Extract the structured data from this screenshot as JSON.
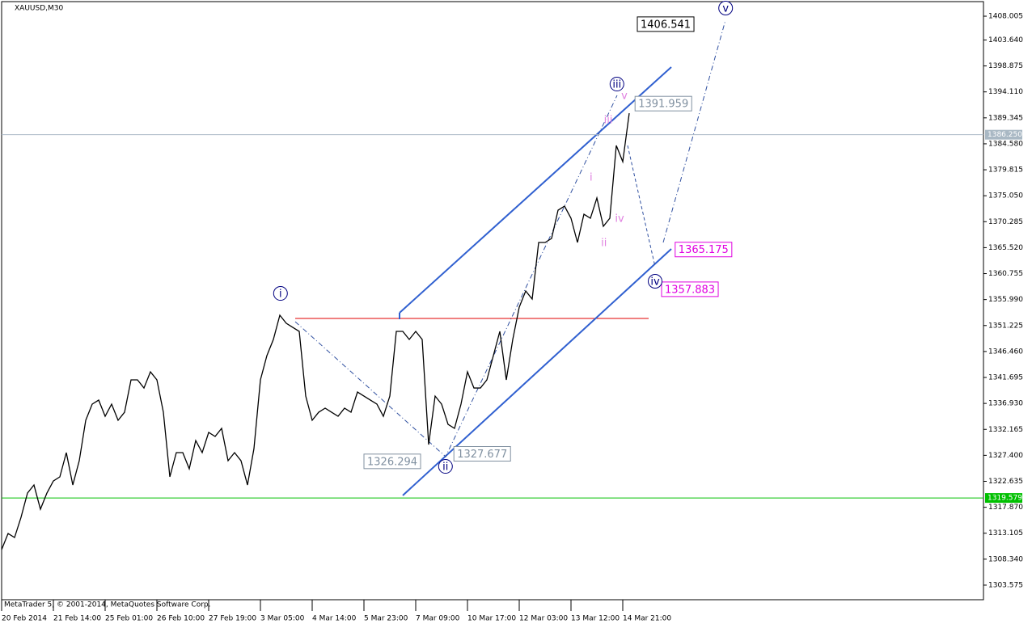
{
  "chart_data": {
    "type": "line",
    "title": "XAUUSD,M30",
    "footer": "MetaTrader 5, © 2001-2014, MetaQuotes Software Corp.",
    "color": "#000000",
    "xlim": [
      0,
      151.75
    ],
    "ylim": [
      1300.9,
      1410.68
    ],
    "xticks": [
      {
        "value": 0,
        "label": "20 Feb 2014"
      },
      {
        "value": 8,
        "label": "21 Feb 14:00"
      },
      {
        "value": 16,
        "label": "25 Feb 01:00"
      },
      {
        "value": 24,
        "label": "26 Feb 10:00"
      },
      {
        "value": 32,
        "label": "27 Feb 19:00"
      },
      {
        "value": 40,
        "label": "3 Mar 05:00"
      },
      {
        "value": 48,
        "label": "4 Mar 14:00"
      },
      {
        "value": 56,
        "label": "5 Mar 23:00"
      },
      {
        "value": 64,
        "label": "7 Mar 09:00"
      },
      {
        "value": 72,
        "label": "10 Mar 17:00"
      },
      {
        "value": 80,
        "label": "12 Mar 03:00"
      },
      {
        "value": 88,
        "label": "13 Mar 12:00"
      },
      {
        "value": 96,
        "label": "14 Mar 21:00"
      }
    ],
    "yticks": [
      1303.575,
      {
        "value": 1308.34,
        "label": "1308.340"
      },
      1313.105,
      {
        "value": 1317.87,
        "label": "1317.870"
      },
      1322.635,
      {
        "value": 1327.4,
        "label": "1327.400"
      },
      1332.165,
      {
        "value": 1336.93,
        "label": "1336.930"
      },
      1341.695,
      {
        "value": 1346.46,
        "label": "1346.460"
      },
      1351.225,
      {
        "value": 1355.99,
        "label": "1355.990"
      },
      1360.755,
      {
        "value": 1365.52,
        "label": "1365.520"
      },
      1370.285,
      {
        "value": 1375.05,
        "label": "1375.050"
      },
      1379.815,
      {
        "value": 1384.58,
        "label": "1384.580"
      },
      1389.345,
      {
        "value": 1394.11,
        "label": "1394.110"
      },
      1398.875,
      {
        "value": 1403.64,
        "label": "1403.640"
      },
      1408.005
    ],
    "values": [
      1310.09,
      1313.06,
      1312.32,
      1316.03,
      1320.48,
      1321.96,
      1317.51,
      1320.48,
      1322.7,
      1323.45,
      1327.9,
      1321.96,
      1326.41,
      1333.83,
      1336.8,
      1337.54,
      1334.57,
      1336.8,
      1333.83,
      1335.31,
      1341.25,
      1341.25,
      1339.76,
      1342.73,
      1341.25,
      1335.31,
      1323.45,
      1327.9,
      1327.9,
      1324.93,
      1330.12,
      1327.9,
      1331.61,
      1330.86,
      1332.35,
      1326.41,
      1327.9,
      1326.41,
      1321.96,
      1328.64,
      1341.25,
      1345.7,
      1348.67,
      1353.12,
      1351.63,
      1350.89,
      1350.15,
      1338.28,
      1333.83,
      1335.31,
      1336.06,
      1335.31,
      1334.57,
      1336.06,
      1335.31,
      1339.02,
      1338.28,
      1337.54,
      1336.8,
      1334.57,
      1338.28,
      1350.15,
      1350.15,
      1348.67,
      1350.15,
      1348.67,
      1329.38,
      1338.28,
      1336.8,
      1333.09,
      1332.35,
      1336.8,
      1342.73,
      1339.76,
      1339.76,
      1341.25,
      1345.7,
      1350.15,
      1341.25,
      1348.67,
      1354.6,
      1357.57,
      1356.09,
      1366.47,
      1366.47,
      1367.21,
      1372.4,
      1373.14,
      1370.92,
      1366.47,
      1371.66,
      1370.92,
      1374.63,
      1369.44,
      1370.92,
      1384.27,
      1381.3,
      1390.2
    ],
    "price_lines": [
      {
        "value": 1386.25,
        "label": "1386.250",
        "color": "#a9b8c4"
      },
      {
        "value": 1319.579,
        "color": "#00c000"
      }
    ],
    "price_labels": [
      {
        "value": 1406.541,
        "x": 98.25,
        "color": "#000000"
      },
      {
        "value": 1391.959,
        "x": 97.9,
        "color": "#8090a0"
      },
      {
        "value": 1365.175,
        "x": 104.1,
        "color": "#e000e0"
      },
      {
        "value": 1357.883,
        "x": 102,
        "color": "#e000e0"
      },
      {
        "value": 1326.294,
        "x": 56,
        "color": "#8090a0"
      },
      {
        "value": 1327.677,
        "x": 69.9,
        "color": "#8090a0"
      }
    ],
    "wave_labels": [
      {
        "label": "i",
        "value": 1357.12,
        "x": 43.1,
        "color": "#000080",
        "circled": true
      },
      {
        "label": "ii",
        "value": 1325.37,
        "x": 68.6,
        "color": "#000080",
        "circled": true
      },
      {
        "label": "iii",
        "value": 1395.54,
        "x": 95.1,
        "color": "#000080",
        "circled": true
      },
      {
        "label": "iv",
        "value": 1359.35,
        "x": 101,
        "color": "#000080",
        "circled": true
      },
      {
        "label": "v",
        "value": 1409.49,
        "x": 111.9,
        "color": "#000080",
        "circled": true
      },
      {
        "label": "i",
        "value": 1378.48,
        "x": 91.1,
        "color": "#e080e0",
        "circled": false
      },
      {
        "label": "ii",
        "value": 1366.47,
        "x": 93.1,
        "color": "#e080e0",
        "circled": false
      },
      {
        "label": "iii",
        "value": 1389.02,
        "x": 93.75,
        "color": "#e080e0",
        "circled": false
      },
      {
        "label": "iv",
        "value": 1370.92,
        "x": 95.5,
        "color": "#e080e0",
        "circled": false
      },
      {
        "label": "v",
        "value": 1393.47,
        "x": 96.25,
        "color": "#e080e0",
        "circled": false
      }
    ]
  }
}
